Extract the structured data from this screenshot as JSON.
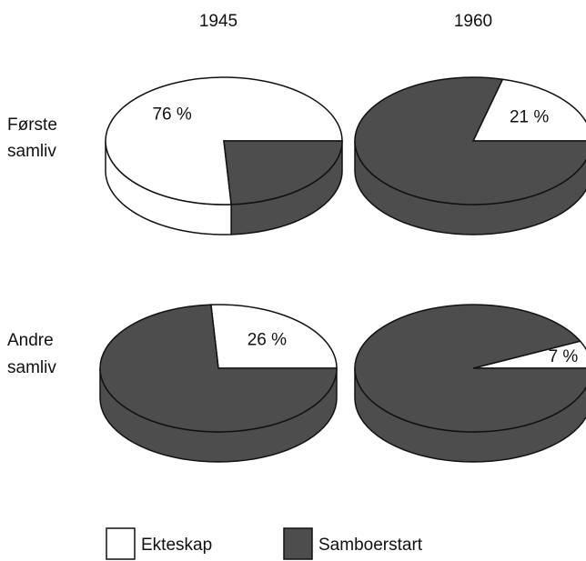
{
  "columns": [
    "1945",
    "1960"
  ],
  "rows": [
    [
      "Første",
      "samliv"
    ],
    [
      "Andre",
      "samliv"
    ]
  ],
  "legend": [
    {
      "name": "Ekteskap",
      "color": "#ffffff"
    },
    {
      "name": "Samboerstart",
      "color": "#4d4d4d"
    }
  ],
  "chart_data": [
    {
      "type": "pie",
      "values": [
        76,
        24
      ],
      "value_labels": [
        "76 %",
        null
      ],
      "colors": [
        "#ffffff",
        "#4d4d4d"
      ]
    },
    {
      "type": "pie",
      "values": [
        21,
        79
      ],
      "value_labels": [
        "21 %",
        null
      ],
      "colors": [
        "#ffffff",
        "#4d4d4d"
      ]
    },
    {
      "type": "pie",
      "values": [
        26,
        74
      ],
      "value_labels": [
        "26 %",
        null
      ],
      "colors": [
        "#ffffff",
        "#4d4d4d"
      ]
    },
    {
      "type": "pie",
      "values": [
        7,
        93
      ],
      "value_labels": [
        "7 %",
        null
      ],
      "colors": [
        "#ffffff",
        "#4d4d4d"
      ]
    }
  ]
}
